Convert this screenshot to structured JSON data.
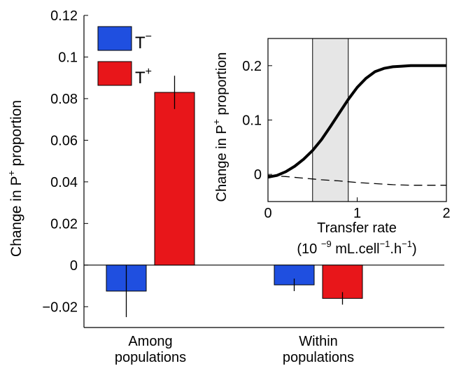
{
  "chart_data": [
    {
      "type": "bar",
      "ylabel_main": "Change in P",
      "ylabel_sup": "+",
      "ylabel_rest": "  proportion",
      "ylim": [
        -0.03,
        0.12
      ],
      "yticks": [
        -0.02,
        0,
        0.02,
        0.04,
        0.06,
        0.08,
        0.1,
        0.12
      ],
      "ytick_labels": [
        "−0.02",
        "0",
        "0.02",
        "0.04",
        "0.06",
        "0.08",
        "0.1",
        "0.12"
      ],
      "categories": [
        {
          "line1": "Among",
          "line2": "populations"
        },
        {
          "line1": "Within",
          "line2": "populations"
        }
      ],
      "series": [
        {
          "name_base": "T",
          "name_sup": "−",
          "color": "#1f4fe0",
          "values": [
            -0.0125,
            -0.0095
          ],
          "errors": [
            0.0125,
            0.003
          ]
        },
        {
          "name_base": "T",
          "name_sup": "+",
          "color": "#e8161a",
          "values": [
            0.083,
            -0.016
          ],
          "errors": [
            0.008,
            0.003
          ]
        }
      ],
      "legend": "top-left"
    },
    {
      "type": "line",
      "ylabel_main": "Change in P",
      "ylabel_sup": "+",
      "ylabel_rest": " proportion",
      "xlabel_line1": "Transfer rate",
      "xlabel_line2_a": "(10 ",
      "xlabel_line2_sup1": "−9",
      "xlabel_line2_b": " mL.cell",
      "xlabel_line2_sup2": "−1",
      "xlabel_line2_c": ".h",
      "xlabel_line2_sup3": "−1",
      "xlabel_line2_d": ")",
      "xlim": [
        0,
        2
      ],
      "ylim": [
        -0.05,
        0.25
      ],
      "xticks": [
        0,
        1,
        2
      ],
      "xtick_labels": [
        "0",
        "1",
        "2"
      ],
      "yticks": [
        0,
        0.1,
        0.2
      ],
      "ytick_labels": [
        "0",
        "0.1",
        "0.2"
      ],
      "shaded_band": [
        0.5,
        0.9
      ],
      "series": [
        {
          "style": "solid",
          "x": [
            0,
            0.1,
            0.2,
            0.3,
            0.4,
            0.5,
            0.6,
            0.7,
            0.8,
            0.9,
            1.0,
            1.1,
            1.2,
            1.3,
            1.4,
            1.5,
            1.6,
            1.7,
            1.8,
            1.9,
            2.0
          ],
          "y": [
            -0.005,
            -0.002,
            0.005,
            0.015,
            0.028,
            0.044,
            0.064,
            0.088,
            0.113,
            0.138,
            0.16,
            0.177,
            0.189,
            0.195,
            0.198,
            0.199,
            0.2,
            0.2,
            0.2,
            0.2,
            0.2
          ]
        },
        {
          "style": "dashed",
          "x": [
            0,
            0.2,
            0.4,
            0.6,
            0.8,
            1.0,
            1.2,
            1.4,
            1.6,
            1.8,
            2.0
          ],
          "y": [
            -0.002,
            -0.004,
            -0.007,
            -0.01,
            -0.012,
            -0.015,
            -0.017,
            -0.019,
            -0.02,
            -0.02,
            -0.02
          ]
        }
      ]
    }
  ]
}
